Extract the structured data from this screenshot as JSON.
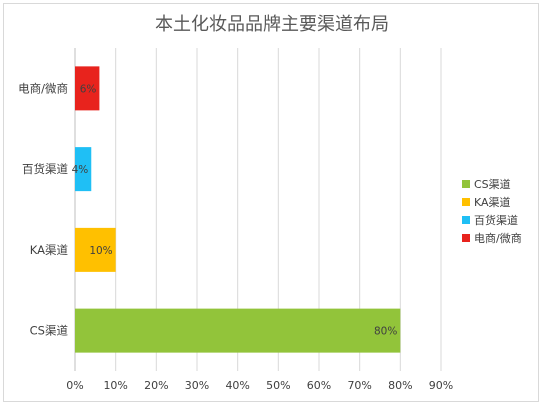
{
  "chart_data": {
    "type": "bar",
    "orientation": "horizontal",
    "title": "本土化妆品品牌主要渠道布局",
    "categories": [
      "CS渠道",
      "KA渠道",
      "百货渠道",
      "电商/微商"
    ],
    "values": [
      80,
      10,
      4,
      6
    ],
    "value_labels": [
      "80%",
      "10%",
      "4%",
      "6%"
    ],
    "colors": [
      "#92c43a",
      "#ffc000",
      "#1fbff5",
      "#e8231d"
    ],
    "xlim": [
      0,
      90
    ],
    "xticks": [
      0,
      10,
      20,
      30,
      40,
      50,
      60,
      70,
      80,
      90
    ],
    "xtick_labels": [
      "0%",
      "10%",
      "20%",
      "30%",
      "40%",
      "50%",
      "60%",
      "70%",
      "80%",
      "90%"
    ],
    "grid": "vertical",
    "legend": {
      "placement": "right",
      "entries": [
        "CS渠道",
        "KA渠道",
        "百货渠道",
        "电商/微商"
      ]
    }
  }
}
